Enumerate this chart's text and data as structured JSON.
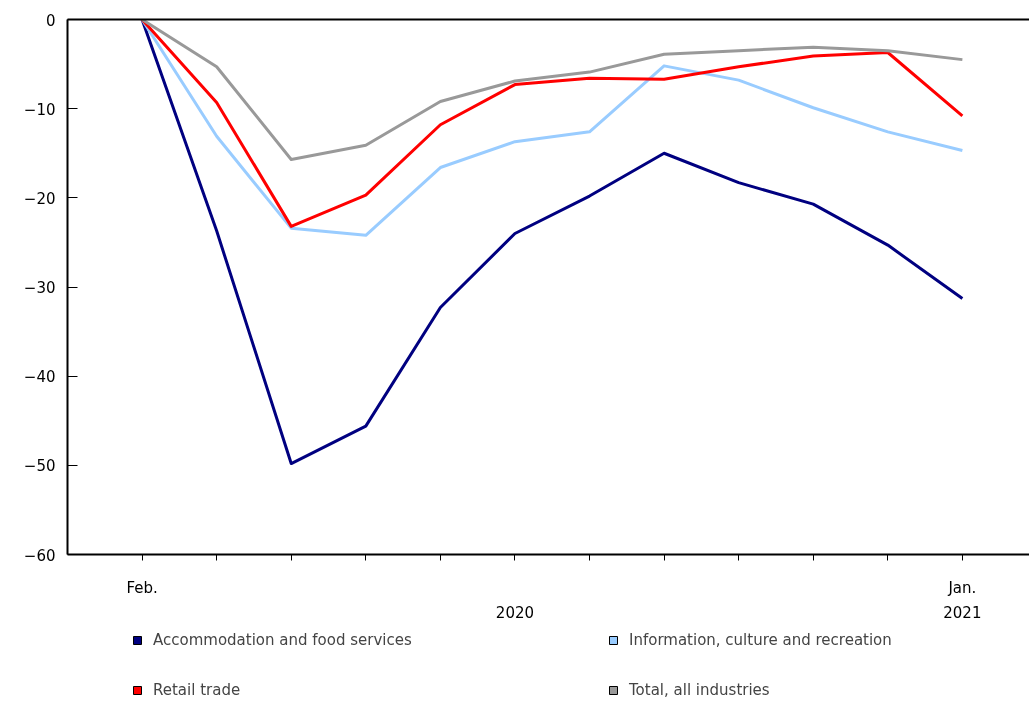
{
  "chart_data": {
    "type": "line",
    "categories": [
      "Feb.",
      null,
      null,
      null,
      null,
      null,
      null,
      null,
      null,
      null,
      null,
      "Jan."
    ],
    "ylim": [
      -60,
      0
    ],
    "yticks": [
      0,
      -10,
      -20,
      -30,
      -40,
      -50,
      -60
    ],
    "series": [
      {
        "name": "Accommodation and food services",
        "color": "#000080",
        "values": [
          0,
          -23.7,
          -49.8,
          -45.6,
          -32.3,
          -24.0,
          -19.8,
          -15.0,
          -18.3,
          -20.7,
          -25.3,
          -31.3
        ]
      },
      {
        "name": "Information, culture and recreation",
        "color": "#99ccff",
        "values": [
          0,
          -13.1,
          -23.4,
          -24.2,
          -16.6,
          -13.7,
          -12.6,
          -5.2,
          -6.8,
          -9.9,
          -12.6,
          -14.7
        ]
      },
      {
        "name": "Retail trade",
        "color": "#ff0000",
        "values": [
          0,
          -9.3,
          -23.2,
          -19.7,
          -11.8,
          -7.3,
          -6.6,
          -6.7,
          -5.3,
          -4.1,
          -3.7,
          -10.8
        ]
      },
      {
        "name": "Total, all industries",
        "color": "#999999",
        "values": [
          0,
          -5.3,
          -15.7,
          -14.1,
          -9.2,
          -6.9,
          -5.9,
          -3.9,
          -3.5,
          -3.1,
          -3.5,
          -4.5
        ]
      }
    ],
    "annotations": [
      "2020",
      "2021"
    ],
    "legend": "bottom",
    "grid": false,
    "marker": "none",
    "line_style": "solid"
  }
}
